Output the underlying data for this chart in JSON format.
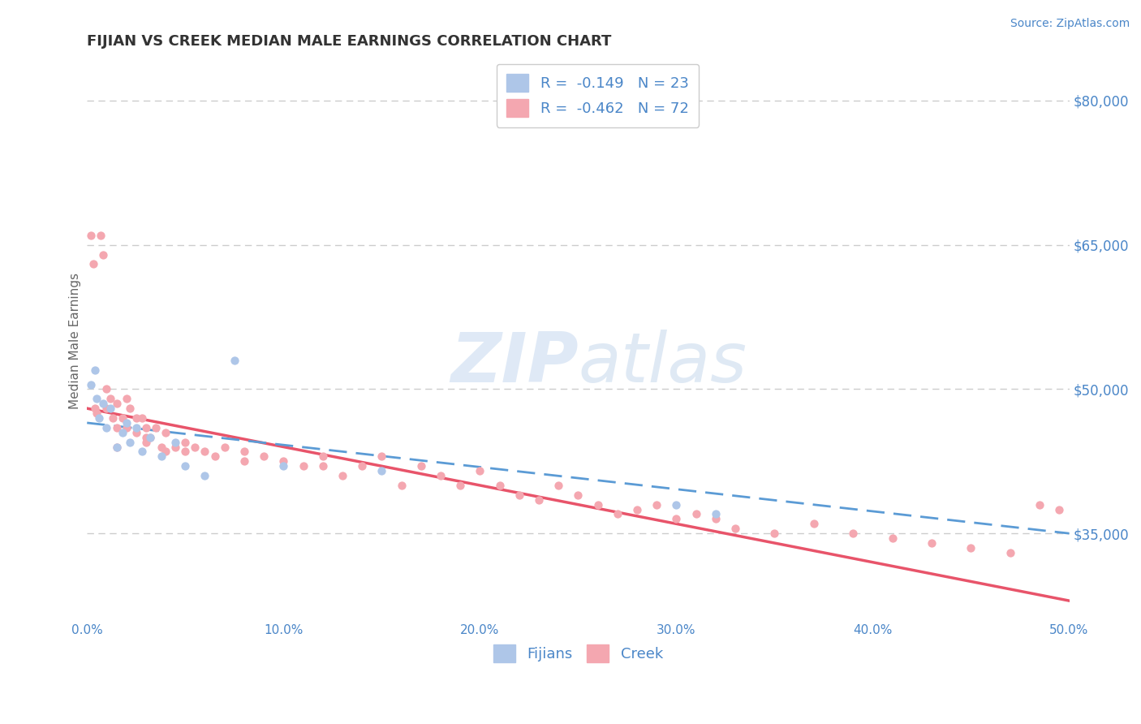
{
  "title": "FIJIAN VS CREEK MEDIAN MALE EARNINGS CORRELATION CHART",
  "source_text": "Source: ZipAtlas.com",
  "ylabel": "Median Male Earnings",
  "xlim": [
    0.0,
    50.0
  ],
  "ylim": [
    26000,
    84000
  ],
  "yticks": [
    35000,
    50000,
    65000,
    80000
  ],
  "ytick_labels": [
    "$35,000",
    "$50,000",
    "$65,000",
    "$80,000"
  ],
  "xticks": [
    0.0,
    10.0,
    20.0,
    30.0,
    40.0,
    50.0
  ],
  "xtick_labels": [
    "0.0%",
    "10.0%",
    "20.0%",
    "30.0%",
    "40.0%",
    "50.0%"
  ],
  "grid_color": "#cccccc",
  "background_color": "#ffffff",
  "fijian_color": "#aec6e8",
  "creek_color": "#f4a7b0",
  "fijian_line_color": "#5b9bd5",
  "creek_line_color": "#e8546a",
  "label_color": "#4a86c8",
  "watermark_color": "#d0dff0",
  "legend_R_fijian": "R =  -0.149",
  "legend_N_fijian": "N = 23",
  "legend_R_creek": "R =  -0.462",
  "legend_N_creek": "N = 72",
  "fijian_x": [
    0.2,
    0.4,
    0.5,
    0.6,
    0.8,
    1.0,
    1.2,
    1.5,
    1.8,
    2.0,
    2.2,
    2.5,
    2.8,
    3.2,
    3.8,
    4.5,
    5.0,
    6.0,
    7.5,
    10.0,
    15.0,
    30.0,
    32.0
  ],
  "fijian_y": [
    50500,
    52000,
    49000,
    47000,
    48500,
    46000,
    48000,
    44000,
    45500,
    46500,
    44500,
    46000,
    43500,
    45000,
    43000,
    44500,
    42000,
    41000,
    53000,
    42000,
    41500,
    38000,
    37000
  ],
  "creek_x": [
    0.2,
    0.3,
    0.4,
    0.5,
    0.7,
    0.8,
    1.0,
    1.0,
    1.2,
    1.3,
    1.5,
    1.5,
    1.8,
    2.0,
    2.0,
    2.2,
    2.5,
    2.5,
    2.8,
    3.0,
    3.0,
    3.2,
    3.5,
    3.8,
    4.0,
    4.0,
    4.5,
    5.0,
    5.5,
    6.0,
    6.5,
    7.0,
    8.0,
    9.0,
    10.0,
    11.0,
    12.0,
    13.0,
    14.0,
    15.0,
    16.0,
    17.0,
    18.0,
    19.0,
    20.0,
    21.0,
    22.0,
    23.0,
    24.0,
    25.0,
    26.0,
    27.0,
    28.0,
    29.0,
    30.0,
    31.0,
    32.0,
    33.0,
    35.0,
    37.0,
    39.0,
    41.0,
    43.0,
    45.0,
    47.0,
    48.5,
    49.5,
    1.5,
    3.0,
    5.0,
    8.0,
    12.0
  ],
  "creek_y": [
    66000,
    63000,
    48000,
    47500,
    66000,
    64000,
    50000,
    48000,
    49000,
    47000,
    48500,
    46000,
    47000,
    49000,
    46000,
    48000,
    47000,
    45500,
    47000,
    46000,
    44500,
    45000,
    46000,
    44000,
    45500,
    43500,
    44000,
    43500,
    44000,
    43500,
    43000,
    44000,
    42500,
    43000,
    42500,
    42000,
    43000,
    41000,
    42000,
    43000,
    40000,
    42000,
    41000,
    40000,
    41500,
    40000,
    39000,
    38500,
    40000,
    39000,
    38000,
    37000,
    37500,
    38000,
    36500,
    37000,
    36500,
    35500,
    35000,
    36000,
    35000,
    34500,
    34000,
    33500,
    33000,
    38000,
    37500,
    44000,
    45000,
    44500,
    43500,
    42000
  ]
}
